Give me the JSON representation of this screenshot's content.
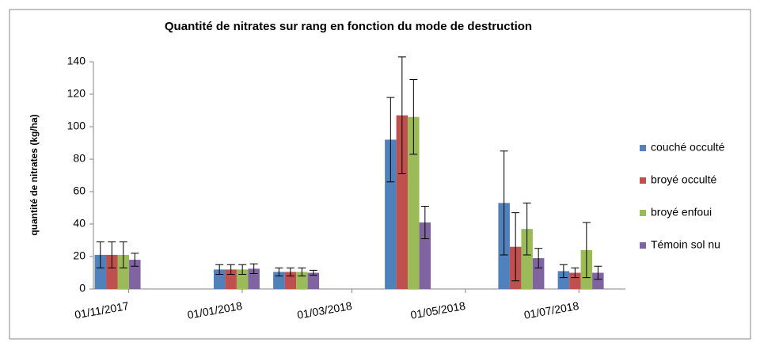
{
  "chart_data": {
    "type": "bar",
    "title": "Quantité de nitrates sur rang en fonction du mode de destruction",
    "y_label": "quantité de nitrates (kg/ha)",
    "x": [
      "26/10/2017",
      "29/12/2017",
      "30/01/2018",
      "31/03/2018",
      "31/05/2018",
      "02/07/2018"
    ],
    "xlim": [
      "13/10/2017",
      "26/07/2018"
    ],
    "xticks": [
      "01/11/2017",
      "01/01/2018",
      "01/03/2018",
      "01/05/2018",
      "01/07/2018"
    ],
    "ylim": [
      0,
      140
    ],
    "yticks": [
      0,
      20,
      40,
      60,
      80,
      100,
      120,
      140
    ],
    "grid": false,
    "legend": "right",
    "series": [
      {
        "name": "couché occulté",
        "color": "#4f81bd",
        "values": [
          21,
          12,
          10.5,
          92,
          53,
          11
        ],
        "errors": [
          8,
          3,
          2.5,
          26,
          32,
          4
        ]
      },
      {
        "name": "broyé occulté",
        "color": "#c0504d",
        "values": [
          21,
          12,
          10.5,
          107,
          26,
          10
        ],
        "errors": [
          8,
          3,
          2.5,
          36,
          21,
          3
        ]
      },
      {
        "name": "broyé enfoui",
        "color": "#9bbb59",
        "values": [
          21,
          12,
          10.5,
          106,
          37,
          24
        ],
        "errors": [
          8,
          3,
          2.5,
          23,
          16,
          17
        ]
      },
      {
        "name": "Témoin sol nu",
        "color": "#8064a2",
        "values": [
          18,
          12.5,
          10,
          41,
          19,
          10
        ],
        "errors": [
          4,
          3,
          1.5,
          10,
          6,
          4
        ]
      }
    ]
  }
}
